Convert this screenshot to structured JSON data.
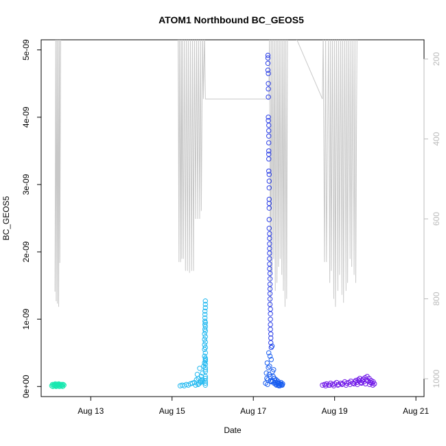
{
  "chart_data": {
    "type": "scatter",
    "title": "ATOM1 Northbound BC_GEOS5",
    "xlabel": "Date",
    "ylabel": "BC_GEOS5",
    "x_units": "days since Aug 12 00:00",
    "x_ticks": [
      {
        "label": "Aug 13",
        "value": 1.0
      },
      {
        "label": "Aug 15",
        "value": 3.0
      },
      {
        "label": "Aug 17",
        "value": 5.0
      },
      {
        "label": "Aug 19",
        "value": 7.0
      },
      {
        "label": "Aug 21",
        "value": 9.0
      }
    ],
    "xlim": [
      -0.22,
      9.2
    ],
    "y_ticks": [
      {
        "label": "0e+00",
        "value": 0
      },
      {
        "label": "1e-09",
        "value": 1e-09
      },
      {
        "label": "2e-09",
        "value": 2e-09
      },
      {
        "label": "3e-09",
        "value": 3e-09
      },
      {
        "label": "4e-09",
        "value": 4e-09
      },
      {
        "label": "5e-09",
        "value": 5e-09
      }
    ],
    "ylim": [
      -1.5e-10,
      5.15e-09
    ],
    "y2_ticks": [
      {
        "label": "200",
        "value": 200
      },
      {
        "label": "400",
        "value": 400
      },
      {
        "label": "600",
        "value": 600
      },
      {
        "label": "800",
        "value": 800
      },
      {
        "label": "1000",
        "value": 1000
      }
    ],
    "y2_reversed": true,
    "y2_color": "#bbbbbb",
    "point_series": [
      {
        "color": "#19e8b0",
        "x": [
          0.04,
          0.06,
          0.08,
          0.1,
          0.12,
          0.14,
          0.16,
          0.18,
          0.2,
          0.22,
          0.24,
          0.26,
          0.28,
          0.3,
          0.32,
          0.34,
          0.07,
          0.11,
          0.15,
          0.19,
          0.23,
          0.27,
          0.31,
          0.13,
          0.21,
          0.29
        ],
        "y": [
          1e-11,
          3e-11,
          2e-11,
          3e-11,
          2e-11,
          1e-11,
          3e-11,
          2e-11,
          1e-11,
          3e-11,
          2e-11,
          3e-11,
          1e-11,
          2e-11,
          3e-11,
          2e-11,
          0.0,
          1e-11,
          0.0,
          2e-11,
          0.0,
          1e-11,
          0.0,
          4e-11,
          4e-11,
          3e-11
        ]
      },
      {
        "color": "#20b8f0",
        "x": [
          3.2,
          3.25,
          3.3,
          3.35,
          3.4,
          3.45,
          3.5,
          3.55,
          3.6,
          3.62,
          3.65,
          3.68,
          3.7,
          3.72,
          3.75,
          3.78,
          3.8,
          3.8,
          3.8,
          3.8,
          3.8,
          3.8,
          3.81,
          3.81,
          3.81,
          3.81,
          3.81,
          3.81,
          3.82,
          3.82,
          3.82,
          3.82,
          3.82,
          3.82,
          3.82,
          3.82,
          3.82,
          3.82,
          3.82,
          3.82,
          3.82,
          3.82,
          3.82,
          3.82,
          3.82,
          3.82,
          3.82,
          3.82,
          3.82,
          3.82,
          3.66,
          3.7,
          3.74,
          3.64,
          3.58,
          3.76
        ],
        "y": [
          1e-11,
          2e-11,
          1e-11,
          3e-11,
          2e-11,
          4e-11,
          5e-11,
          6e-11,
          1e-10,
          1.8e-10,
          1.2e-10,
          2.7e-10,
          8e-11,
          1.5e-10,
          2e-10,
          3e-10,
          3.5e-10,
          4.5e-10,
          5.5e-10,
          6.2e-10,
          7e-10,
          7.8e-10,
          8.5e-10,
          9.2e-10,
          9.7e-10,
          1.02e-09,
          1.07e-09,
          1.12e-09,
          1.17e-09,
          1.22e-09,
          1.27e-09,
          4e-10,
          5e-10,
          2.5e-10,
          1.5e-10,
          5e-11,
          3.3e-10,
          3.8e-10,
          4.2e-10,
          5.8e-10,
          6.6e-10,
          7.4e-10,
          8.2e-10,
          8.9e-10,
          9.5e-10,
          2.2e-10,
          1.2e-10,
          8e-11,
          2e-11,
          2.8e-10,
          4e-11,
          6e-11,
          1e-10,
          3e-11,
          2e-11,
          7e-11
        ]
      },
      {
        "color": "#1a5ef0",
        "x": [
          5.3,
          5.32,
          5.34,
          5.36,
          5.38,
          5.4,
          5.42,
          5.44,
          5.46,
          5.48,
          5.5,
          5.52,
          5.54,
          5.56,
          5.58,
          5.6,
          5.62,
          5.64,
          5.66,
          5.68,
          5.7,
          5.72,
          5.35,
          5.39,
          5.43,
          5.47,
          5.51,
          5.55,
          5.59,
          5.63,
          5.67,
          5.71,
          5.33,
          5.37,
          5.41,
          5.45,
          5.49,
          5.53,
          5.57,
          5.61,
          5.65,
          5.69
        ],
        "y": [
          5e-11,
          2e-10,
          3.5e-10,
          1e-10,
          5e-10,
          3e-10,
          1.5e-10,
          4e-10,
          6e-10,
          8e-11,
          2.5e-10,
          1.2e-10,
          6e-11,
          1e-10,
          4e-11,
          8e-11,
          2e-11,
          5e-11,
          3e-11,
          6e-11,
          2e-11,
          4e-11,
          3e-11,
          1.8e-10,
          8e-11,
          2.2e-10,
          5e-11,
          3e-11,
          6e-11,
          1e-11,
          4e-11,
          2e-11,
          1.2e-10,
          2.8e-10,
          4.5e-10,
          7e-11,
          1.5e-10,
          9e-11,
          2e-11,
          5e-11,
          1e-11,
          3e-11
        ]
      },
      {
        "color": "#2a3ee8",
        "x": [
          5.36,
          5.36,
          5.36,
          5.36,
          5.37,
          5.37,
          5.37,
          5.37,
          5.37,
          5.37,
          5.38,
          5.38,
          5.38,
          5.38,
          5.38,
          5.38,
          5.38,
          5.38,
          5.39,
          5.39,
          5.39,
          5.39,
          5.39,
          5.39,
          5.39,
          5.39,
          5.4,
          5.4,
          5.4,
          5.4,
          5.4,
          5.4,
          5.4,
          5.4,
          5.41,
          5.41,
          5.41,
          5.41,
          5.41,
          5.41,
          5.41,
          5.42,
          5.42,
          5.42,
          5.42,
          5.42,
          5.43,
          5.43,
          5.43,
          5.44
        ],
        "y": [
          4.92e-09,
          4.88e-09,
          4.8e-09,
          4.7e-09,
          4.65e-09,
          4.5e-09,
          4.42e-09,
          4.3e-09,
          4e-09,
          3.95e-09,
          3.88e-09,
          3.8e-09,
          3.72e-09,
          3.62e-09,
          3.5e-09,
          3.45e-09,
          3.38e-09,
          3.2e-09,
          3.15e-09,
          3.05e-09,
          2.95e-09,
          2.78e-09,
          2.72e-09,
          2.65e-09,
          2.48e-09,
          2.35e-09,
          2.27e-09,
          2.2e-09,
          2.12e-09,
          2.05e-09,
          1.98e-09,
          1.9e-09,
          1.82e-09,
          1.75e-09,
          1.68e-09,
          1.6e-09,
          1.52e-09,
          1.45e-09,
          1.38e-09,
          1.3e-09,
          1.22e-09,
          1.15e-09,
          1.08e-09,
          1e-09,
          9.2e-10,
          8.5e-10,
          7.8e-10,
          7.2e-10,
          6.5e-10,
          5.8e-10
        ]
      },
      {
        "color": "#7018e8",
        "x": [
          6.7,
          6.75,
          6.8,
          6.85,
          6.9,
          6.95,
          7.0,
          7.05,
          7.1,
          7.15,
          7.2,
          7.25,
          7.3,
          7.35,
          7.4,
          7.45,
          7.5,
          7.52,
          7.55,
          7.58,
          7.6,
          7.62,
          7.65,
          7.68,
          7.7,
          7.72,
          7.75,
          7.78,
          7.8,
          7.82,
          7.85,
          7.88,
          7.9,
          7.92,
          7.95,
          7.98,
          6.78,
          6.88,
          6.98,
          7.08,
          7.18,
          7.28,
          7.38,
          7.48,
          7.56,
          7.66,
          7.76,
          7.86,
          7.94
        ],
        "y": [
          2e-11,
          3e-11,
          4e-11,
          2e-11,
          5e-11,
          3e-11,
          4e-11,
          6e-11,
          3e-11,
          5e-11,
          4e-11,
          7e-11,
          5e-11,
          6e-11,
          8e-11,
          5e-11,
          7e-11,
          9e-11,
          6e-11,
          1e-10,
          8e-11,
          1.2e-10,
          6e-11,
          9e-11,
          1.1e-10,
          7e-11,
          1.3e-10,
          1e-10,
          1.5e-10,
          8e-11,
          1.2e-10,
          6e-11,
          9e-11,
          5e-11,
          7e-11,
          4e-11,
          1e-11,
          2e-11,
          1e-11,
          2e-11,
          3e-11,
          2e-11,
          3e-11,
          4e-11,
          3e-11,
          5e-11,
          4e-11,
          3e-11,
          2e-11
        ]
      }
    ],
    "altitude_line": {
      "color": "#c8c8c8",
      "x": [
        0.12,
        0.14,
        0.15,
        0.17,
        0.18,
        0.2,
        0.21,
        0.23,
        0.24,
        0.26,
        0.27,
        0.29,
        0.3,
        0.32,
        0.33,
        3.15,
        3.17,
        3.18,
        3.21,
        3.22,
        3.24,
        3.25,
        3.28,
        3.3,
        3.33,
        3.35,
        3.38,
        3.4,
        3.43,
        3.45,
        3.48,
        3.5,
        3.53,
        3.55,
        3.58,
        3.6,
        3.63,
        3.65,
        3.68,
        3.7,
        3.72,
        3.75,
        3.77,
        3.8,
        3.82,
        3.84,
        5.38,
        5.4,
        5.42,
        5.44,
        5.46,
        5.48,
        5.5,
        5.52,
        5.54,
        5.56,
        5.58,
        5.6,
        5.62,
        5.64,
        5.66,
        5.68,
        5.7,
        5.72,
        5.74,
        5.76,
        5.78,
        5.8,
        5.82,
        5.84,
        6.0,
        6.7,
        6.72,
        6.75,
        6.78,
        6.8,
        6.85,
        6.88,
        6.9,
        6.92,
        6.95,
        6.98,
        7.0,
        7.02,
        7.05,
        7.08,
        7.1,
        7.12,
        7.15,
        7.18,
        7.2,
        7.22,
        7.25,
        7.28,
        7.3,
        7.32,
        7.35,
        7.38,
        7.4,
        7.42,
        7.45,
        7.48,
        7.5,
        7.52,
        7.55
      ],
      "y": [
        782,
        140,
        806,
        140,
        812,
        140,
        820,
        140,
        710,
        140,
        140,
        140,
        140,
        140,
        140,
        140,
        708,
        140,
        708,
        140,
        700,
        140,
        700,
        140,
        730,
        140,
        730,
        140,
        735,
        140,
        730,
        140,
        730,
        140,
        600,
        140,
        600,
        140,
        600,
        140,
        580,
        140,
        300,
        140,
        300,
        300,
        300,
        140,
        820,
        140,
        740,
        140,
        700,
        140,
        780,
        140,
        760,
        140,
        720,
        140,
        700,
        140,
        740,
        140,
        780,
        140,
        820,
        140,
        800,
        140,
        140,
        300,
        140,
        708,
        140,
        708,
        140,
        760,
        140,
        730,
        140,
        800,
        140,
        820,
        140,
        780,
        140,
        740,
        140,
        790,
        140,
        810,
        140,
        780,
        140,
        760,
        140,
        700,
        140,
        720,
        140,
        740,
        140,
        760,
        140
      ]
    }
  }
}
